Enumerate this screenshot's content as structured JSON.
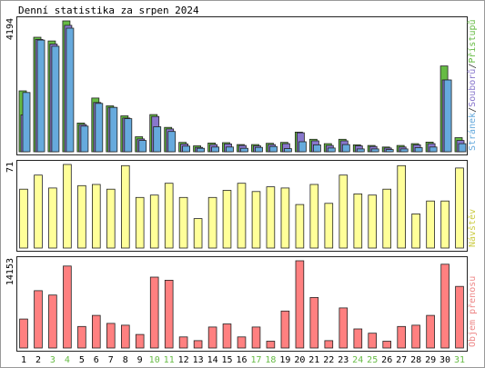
{
  "chart_data": {
    "type": "bar",
    "title": "Denní statistika za srpen 2024",
    "categories": [
      "1",
      "2",
      "3",
      "4",
      "5",
      "6",
      "7",
      "8",
      "9",
      "10",
      "11",
      "12",
      "13",
      "14",
      "15",
      "16",
      "17",
      "18",
      "19",
      "20",
      "21",
      "22",
      "23",
      "24",
      "25",
      "26",
      "27",
      "28",
      "29",
      "30",
      "31"
    ],
    "weekend_days": [
      "3",
      "4",
      "10",
      "11",
      "17",
      "18",
      "24",
      "25",
      "31"
    ],
    "panels": [
      {
        "id": "access",
        "ymax_label": "4194",
        "label_parts": [
          {
            "text": "Stránek",
            "color": "#66aadd"
          },
          {
            "text": "/",
            "color": "#333333"
          },
          {
            "text": "Souborů",
            "color": "#8877cc"
          },
          {
            "text": "/",
            "color": "#333333"
          },
          {
            "text": "Přístupů",
            "color": "#66bb44"
          }
        ],
        "ymax": 4194,
        "series": [
          {
            "name": "Přístupů",
            "color": "#66bb44",
            "values": [
              1950,
              3670,
              3550,
              4194,
              920,
              1720,
              1470,
              1150,
              480,
              1190,
              780,
              300,
              190,
              280,
              290,
              230,
              230,
              270,
              300,
              630,
              400,
              260,
              400,
              220,
              200,
              150,
              200,
              260,
              310,
              2750,
              450
            ]
          },
          {
            "name": "Souborů",
            "color": "#8877cc",
            "values": [
              1180,
              3600,
              3450,
              4050,
              870,
              1580,
              1420,
              1080,
              410,
              1130,
              730,
              250,
              140,
              230,
              250,
              200,
              190,
              230,
              260,
              610,
              350,
              200,
              350,
              190,
              170,
              120,
              150,
              220,
              260,
              2300,
              360
            ]
          },
          {
            "name": "Stránek",
            "color": "#66aadd",
            "values": [
              1900,
              3580,
              3380,
              3960,
              820,
              1550,
              1420,
              1060,
              360,
              800,
              650,
              180,
              110,
              150,
              150,
              110,
              140,
              170,
              100,
              320,
              220,
              120,
              230,
              90,
              90,
              70,
              90,
              130,
              150,
              2300,
              260
            ]
          }
        ]
      },
      {
        "id": "visits",
        "ymax_label": "71",
        "label_parts": [
          {
            "text": "Návštěv",
            "color": "#cccc44"
          }
        ],
        "ymax": 71,
        "series": [
          {
            "name": "Návštěv",
            "color": "#ffff99",
            "values": [
              50,
              62,
              51,
              71,
              53,
              54,
              50,
              70,
              43,
              45,
              55,
              43,
              25,
              43,
              49,
              55,
              48,
              52,
              51,
              37,
              54,
              38,
              62,
              46,
              45,
              50,
              70,
              29,
              40,
              40,
              68
            ]
          }
        ]
      },
      {
        "id": "kb",
        "ymax_label": "14153",
        "label_parts": [
          {
            "text": "Objem přenosu",
            "color": "#ee8888"
          }
        ],
        "ymax": 14153,
        "series": [
          {
            "name": "Objem přenosu",
            "color": "#ff8080",
            "values": [
              4700,
              9300,
              8600,
              13300,
              3500,
              5300,
              4000,
              3700,
              2200,
              11500,
              11000,
              1800,
              1200,
              3400,
              3900,
              1800,
              3400,
              1100,
              6000,
              14153,
              8200,
              1200,
              6500,
              3100,
              2400,
              1100,
              3500,
              3700,
              5300,
              13600,
              10000
            ]
          }
        ]
      }
    ]
  }
}
